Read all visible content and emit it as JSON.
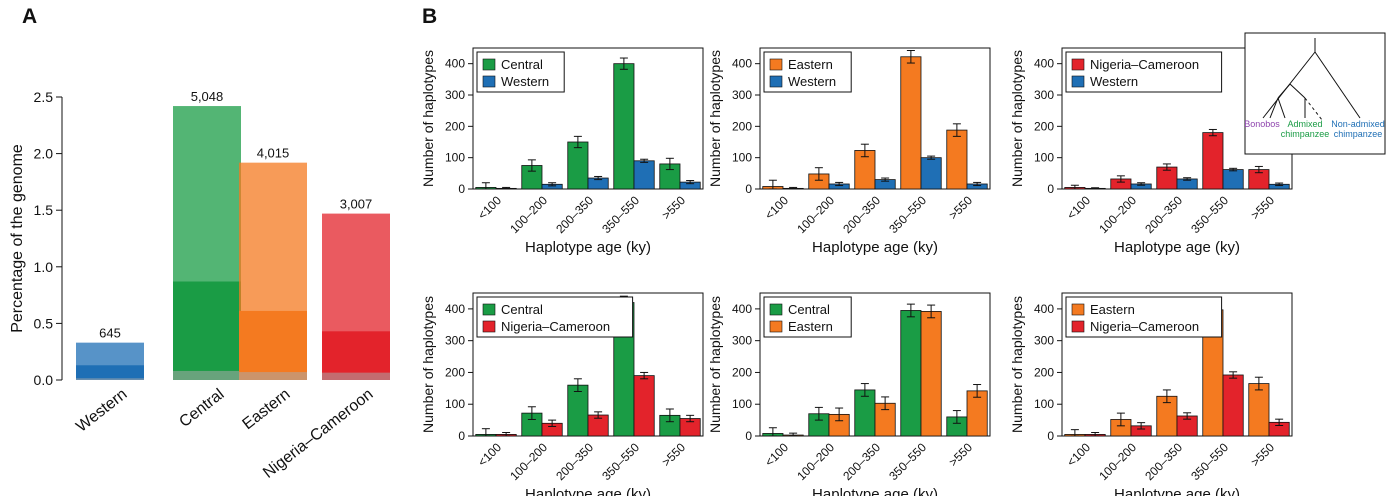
{
  "colors": {
    "Western": "#1f6fb5",
    "Central": "#1a9c45",
    "Eastern": "#f47a20",
    "Nigeria–Cameroon": "#e3232b",
    "bonobos_label": "#8e44ad",
    "admixed_label": "#1a9c45",
    "nonadmixed_label": "#1f6fb5"
  },
  "panel_a": {
    "letter": "A",
    "chart_data": {
      "type": "bar",
      "stacked": true,
      "ylabel": "Percentage of the genome",
      "ylim": [
        0,
        2.5
      ],
      "yticks": [
        "0.0",
        "0.5",
        "1.0",
        "1.5",
        "2.0",
        "2.5"
      ],
      "categories": [
        "Western",
        "Central",
        "Eastern",
        "Nigeria–Cameroon"
      ],
      "totals": [
        0.33,
        2.42,
        1.92,
        1.47
      ],
      "dark_segment": [
        0.13,
        0.87,
        0.61,
        0.43
      ],
      "base_segment": [
        0.015,
        0.08,
        0.07,
        0.065
      ],
      "top_labels": [
        "645",
        "5,048",
        "4,015",
        "3,007"
      ]
    }
  },
  "panel_b": {
    "letter": "B",
    "inset": {
      "labels": {
        "bonobos": "Bonobos",
        "admixed_1": "Admixed",
        "admixed_2": "chimpanzee",
        "nonadmixed_1": "Non-admixed",
        "nonadmixed_2": "chimpanzee"
      }
    },
    "chart_data": [
      {
        "type": "bar",
        "xlabel": "Haplotype age (ky)",
        "ylabel": "Number of haplotypes",
        "ylim": [
          0,
          450
        ],
        "yticks": [
          "0",
          "100",
          "200",
          "300",
          "400"
        ],
        "categories": [
          "<100",
          "100–200",
          "200–350",
          "350–550",
          ">550"
        ],
        "legend": "top-left",
        "series": [
          {
            "name": "Central",
            "values": [
              5,
              75,
              150,
              400,
              80
            ],
            "errors": [
              15,
              18,
              18,
              18,
              18
            ]
          },
          {
            "name": "Western",
            "values": [
              2,
              15,
              35,
              90,
              22
            ],
            "errors": [
              3,
              5,
              5,
              5,
              5
            ]
          }
        ]
      },
      {
        "type": "bar",
        "xlabel": "Haplotype age (ky)",
        "ylabel": "Number of haplotypes",
        "ylim": [
          0,
          450
        ],
        "yticks": [
          "0",
          "100",
          "200",
          "300",
          "400"
        ],
        "categories": [
          "<100",
          "100–200",
          "200–350",
          "350–550",
          ">550"
        ],
        "legend": "top-left",
        "series": [
          {
            "name": "Eastern",
            "values": [
              8,
              48,
              123,
              422,
              188
            ],
            "errors": [
              20,
              20,
              20,
              20,
              20
            ]
          },
          {
            "name": "Western",
            "values": [
              2,
              16,
              30,
              100,
              16
            ],
            "errors": [
              3,
              5,
              5,
              5,
              5
            ]
          }
        ]
      },
      {
        "type": "bar",
        "xlabel": "Haplotype age (ky)",
        "ylabel": "Number of haplotypes",
        "ylim": [
          0,
          450
        ],
        "yticks": [
          "0",
          "100",
          "200",
          "300",
          "400"
        ],
        "categories": [
          "<100",
          "100–200",
          "200–350",
          "350–550",
          ">550"
        ],
        "legend": "top-left",
        "series": [
          {
            "name": "Nigeria–Cameroon",
            "values": [
              5,
              32,
              70,
              180,
              62
            ],
            "errors": [
              7,
              10,
              10,
              10,
              10
            ]
          },
          {
            "name": "Western",
            "values": [
              2,
              16,
              32,
              62,
              15
            ],
            "errors": [
              2,
              4,
              4,
              4,
              4
            ]
          }
        ]
      },
      {
        "type": "bar",
        "xlabel": "Haplotype age (ky)",
        "ylabel": "Number of haplotypes",
        "ylim": [
          0,
          450
        ],
        "yticks": [
          "0",
          "100",
          "200",
          "300",
          "400"
        ],
        "categories": [
          "<100",
          "100–200",
          "200–350",
          "350–550",
          ">550"
        ],
        "legend": "top-left",
        "series": [
          {
            "name": "Central",
            "values": [
              5,
              72,
              160,
              420,
              65
            ],
            "errors": [
              18,
              20,
              20,
              20,
              20
            ]
          },
          {
            "name": "Nigeria–Cameroon",
            "values": [
              5,
              40,
              66,
              190,
              55
            ],
            "errors": [
              6,
              10,
              10,
              10,
              10
            ]
          }
        ]
      },
      {
        "type": "bar",
        "xlabel": "Haplotype age (ky)",
        "ylabel": "Number of haplotypes",
        "ylim": [
          0,
          450
        ],
        "yticks": [
          "0",
          "100",
          "200",
          "300",
          "400"
        ],
        "categories": [
          "<100",
          "100–200",
          "200–350",
          "350–550",
          ">550"
        ],
        "legend": "top-left",
        "series": [
          {
            "name": "Central",
            "values": [
              8,
              70,
              145,
              395,
              60
            ],
            "errors": [
              18,
              20,
              20,
              20,
              20
            ]
          },
          {
            "name": "Eastern",
            "values": [
              3,
              68,
              103,
              392,
              142
            ],
            "errors": [
              6,
              20,
              20,
              20,
              20
            ]
          }
        ]
      },
      {
        "type": "bar",
        "xlabel": "Haplotype age (ky)",
        "ylabel": "Number of haplotypes",
        "ylim": [
          0,
          450
        ],
        "yticks": [
          "0",
          "100",
          "200",
          "300",
          "400"
        ],
        "categories": [
          "<100",
          "100–200",
          "200–350",
          "350–550",
          ">550"
        ],
        "legend": "top-left",
        "series": [
          {
            "name": "Eastern",
            "values": [
              5,
              52,
              125,
              397,
              165
            ],
            "errors": [
              15,
              20,
              20,
              20,
              20
            ]
          },
          {
            "name": "Nigeria–Cameroon",
            "values": [
              5,
              32,
              63,
              192,
              43
            ],
            "errors": [
              6,
              10,
              10,
              10,
              10
            ]
          }
        ]
      }
    ]
  }
}
